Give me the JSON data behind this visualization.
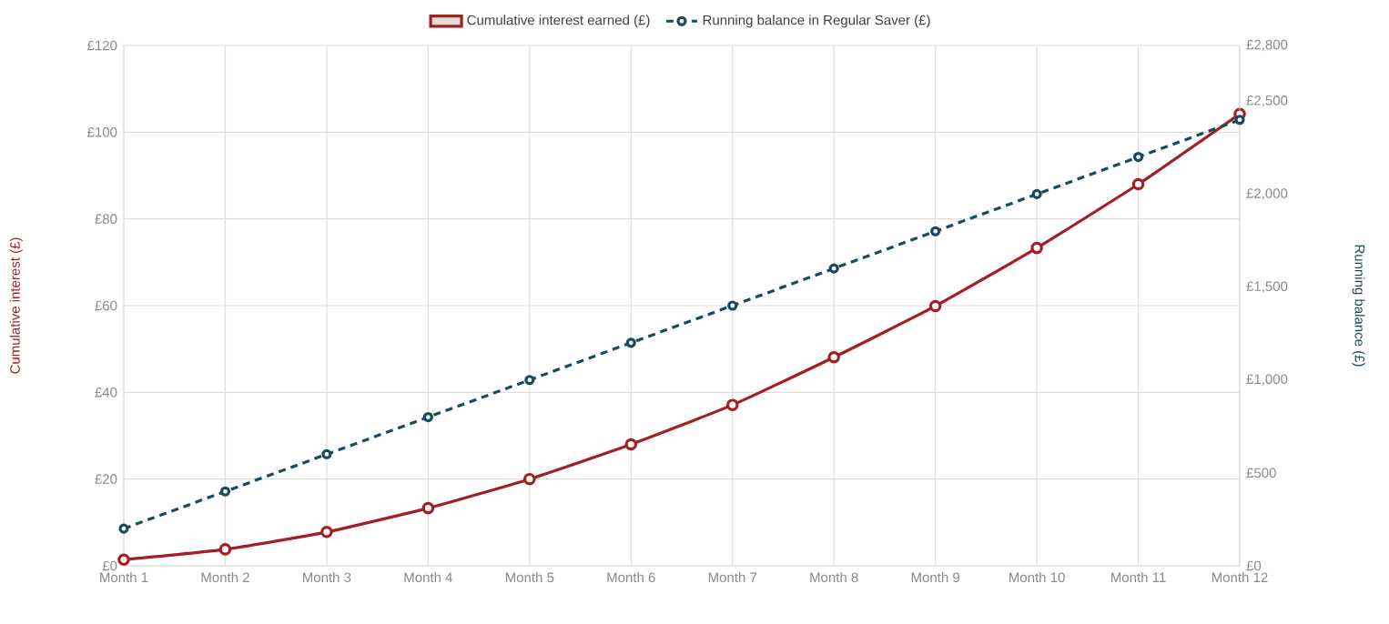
{
  "chart_data": {
    "type": "line",
    "categories": [
      "Month 1",
      "Month 2",
      "Month 3",
      "Month 4",
      "Month 5",
      "Month 6",
      "Month 7",
      "Month 8",
      "Month 9",
      "Month 10",
      "Month 11",
      "Month 12"
    ],
    "series": [
      {
        "name": "Cumulative interest earned (£)",
        "color": "#a31f24",
        "line_style": "solid",
        "values": [
          1.4,
          3.8,
          7.8,
          13.3,
          20.0,
          28.0,
          37.1,
          48.1,
          59.9,
          73.3,
          88.0,
          104.2
        ]
      },
      {
        "name": "Running balance in Regular Saver (£)",
        "color": "#1a4a5e",
        "line_style": "dashed",
        "axis": "y2",
        "values": [
          200,
          400,
          600,
          800,
          1000,
          1200,
          1400,
          1600,
          1800,
          2000,
          2200,
          2400
        ]
      }
    ],
    "ylabel": "Cumulative interest (£)",
    "y2label": "Running balance (£)",
    "ylim": [
      0,
      120
    ],
    "yticks": [
      {
        "value": 0,
        "label": "£0"
      },
      {
        "value": 20,
        "label": "£20"
      },
      {
        "value": 40,
        "label": "£40"
      },
      {
        "value": 60,
        "label": "£60"
      },
      {
        "value": 80,
        "label": "£80"
      },
      {
        "value": 100,
        "label": "£100"
      },
      {
        "value": 120,
        "label": "£120"
      }
    ],
    "y2lim": [
      0,
      2800
    ],
    "y2ticks": [
      {
        "value": 0,
        "label": "£0"
      },
      {
        "value": 500,
        "label": "£500"
      },
      {
        "value": 1000,
        "label": "£1,000"
      },
      {
        "value": 1500,
        "label": "£1,500"
      },
      {
        "value": 2000,
        "label": "£2,000"
      },
      {
        "value": 2500,
        "label": "£2,500"
      },
      {
        "value": 2800,
        "label": "£2,800"
      }
    ],
    "grid": true,
    "legend": "top",
    "marker": "circle"
  }
}
